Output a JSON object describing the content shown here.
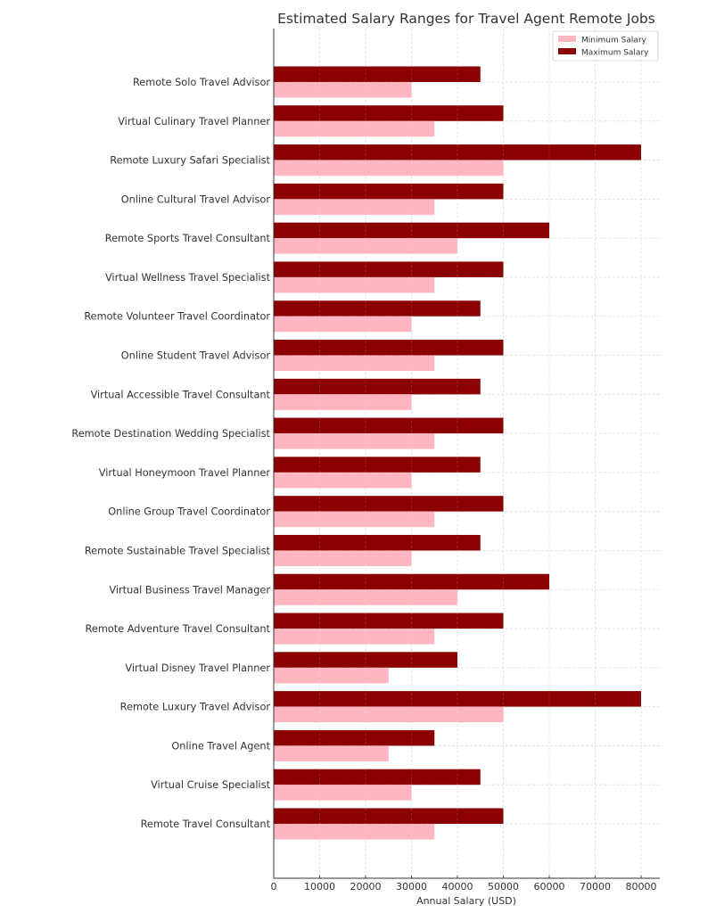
{
  "chart_data": {
    "type": "bar",
    "orientation": "horizontal",
    "title": "Estimated Salary Ranges for Travel Agent Remote Jobs",
    "xlabel": "Annual Salary (USD)",
    "ylabel": "",
    "xlim": [
      0,
      84000
    ],
    "xticks": [
      0,
      10000,
      20000,
      30000,
      40000,
      50000,
      60000,
      70000,
      80000
    ],
    "xtick_labels": [
      "0",
      "10000",
      "20000",
      "30000",
      "40000",
      "50000",
      "60000",
      "70000",
      "80000"
    ],
    "grid": true,
    "legend_position": "top-right",
    "categories": [
      "Remote Travel Consultant",
      "Virtual Cruise Specialist",
      "Online Travel Agent",
      "Remote Luxury Travel Advisor",
      "Virtual Disney Travel Planner",
      "Remote Adventure Travel Consultant",
      "Virtual Business Travel Manager",
      "Remote Sustainable Travel Specialist",
      "Online Group Travel Coordinator",
      "Virtual Honeymoon Travel Planner",
      "Remote Destination Wedding Specialist",
      "Virtual Accessible Travel Consultant",
      "Online Student Travel Advisor",
      "Remote Volunteer Travel Coordinator",
      "Virtual Wellness Travel Specialist",
      "Remote Sports Travel Consultant",
      "Online Cultural Travel Advisor",
      "Remote Luxury Safari Specialist",
      "Virtual Culinary Travel Planner",
      "Remote Solo Travel Advisor"
    ],
    "series": [
      {
        "name": "Minimum Salary",
        "color": "#ffb6c1",
        "values": [
          35000,
          30000,
          25000,
          50000,
          25000,
          35000,
          40000,
          30000,
          35000,
          30000,
          35000,
          30000,
          35000,
          30000,
          35000,
          40000,
          35000,
          50000,
          35000,
          30000
        ]
      },
      {
        "name": "Maximum Salary",
        "color": "#8b0000",
        "values": [
          50000,
          45000,
          35000,
          80000,
          40000,
          50000,
          60000,
          45000,
          50000,
          45000,
          50000,
          45000,
          50000,
          45000,
          50000,
          60000,
          50000,
          80000,
          50000,
          45000
        ]
      }
    ]
  }
}
